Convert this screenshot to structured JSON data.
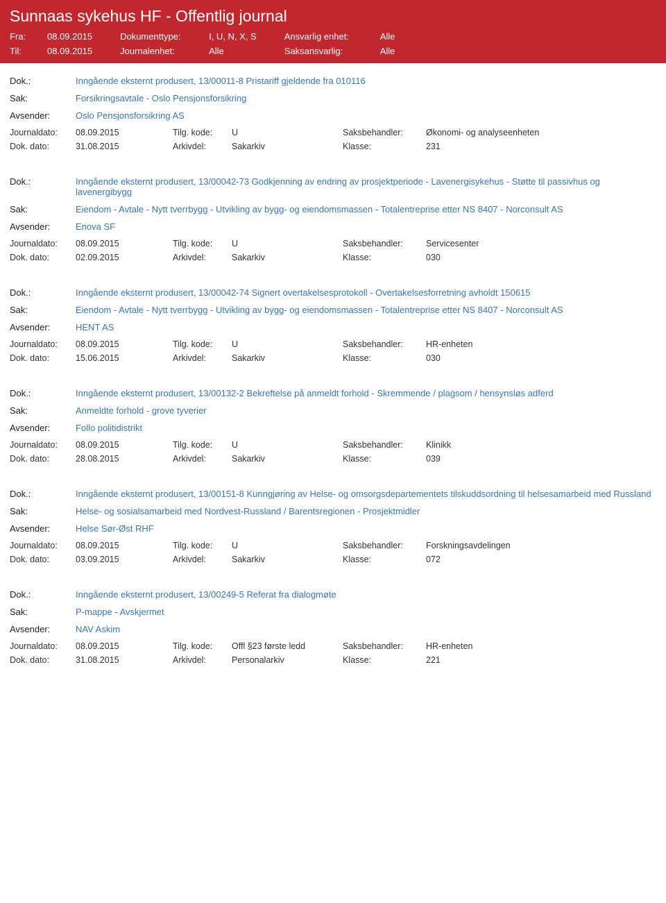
{
  "header": {
    "title": "Sunnaas sykehus HF - Offentlig journal",
    "fra_label": "Fra:",
    "fra_value": "08.09.2015",
    "til_label": "Til:",
    "til_value": "08.09.2015",
    "doktype_label": "Dokumenttype:",
    "doktype_value": "I, U, N, X, S",
    "journalenhet_label": "Journalenhet:",
    "journalenhet_value": "Alle",
    "ansvarlig_label": "Ansvarlig enhet:",
    "ansvarlig_value": "Alle",
    "saksansvarlig_label": "Saksansvarlig:",
    "saksansvarlig_value": "Alle"
  },
  "labels": {
    "dok": "Dok.:",
    "sak": "Sak:",
    "avsender": "Avsender:",
    "journaldato": "Journaldato:",
    "dokdato": "Dok. dato:",
    "tilgkode": "Tilg. kode:",
    "arkivdel": "Arkivdel:",
    "saksbehandler": "Saksbehandler:",
    "klasse": "Klasse:"
  },
  "entries": [
    {
      "dok": "Inngående eksternt produsert, 13/00011-8 Pristariff gjeldende fra 010116",
      "sak": "Forsikringsavtale - Oslo Pensjonsforsikring",
      "avsender": "Oslo Pensjonsforsikring AS",
      "journaldato": "08.09.2015",
      "tilgkode": "U",
      "saksbehandler": "Økonomi- og analyseenheten",
      "dokdato": "31.08.2015",
      "arkivdel": "Sakarkiv",
      "klasse": "231"
    },
    {
      "dok": "Inngående eksternt produsert, 13/00042-73 Godkjenning av endring av prosjektperiode - Lavenergisykehus - Støtte til passivhus og lavenergibygg",
      "sak": "Eiendom - Avtale - Nytt tverrbygg - Utvikling av bygg- og eiendomsmassen - Totalentreprise etter NS 8407 - Norconsult AS",
      "avsender": "Enova SF",
      "journaldato": "08.09.2015",
      "tilgkode": "U",
      "saksbehandler": "Servicesenter",
      "dokdato": "02.09.2015",
      "arkivdel": "Sakarkiv",
      "klasse": "030"
    },
    {
      "dok": "Inngående eksternt produsert, 13/00042-74 Signert overtakelsesprotokoll - Overtakelsesforretning avholdt 150615",
      "sak": "Eiendom - Avtale - Nytt tverrbygg - Utvikling av bygg- og eiendomsmassen - Totalentreprise etter NS 8407 - Norconsult AS",
      "avsender": "HENT AS",
      "journaldato": "08.09.2015",
      "tilgkode": "U",
      "saksbehandler": "HR-enheten",
      "dokdato": "15.06.2015",
      "arkivdel": "Sakarkiv",
      "klasse": "030"
    },
    {
      "dok": "Inngående eksternt produsert, 13/00132-2 Bekreftelse på anmeldt forhold - Skremmende / plagsom / hensynsløs adferd",
      "sak": "Anmeldte forhold - grove tyverier",
      "avsender": "Follo politidistrikt",
      "journaldato": "08.09.2015",
      "tilgkode": "U",
      "saksbehandler": "Klinikk",
      "dokdato": "28.08.2015",
      "arkivdel": "Sakarkiv",
      "klasse": "039"
    },
    {
      "dok": "Inngående eksternt produsert, 13/00151-8 Kunngjøring av Helse- og omsorgsdepartementets tilskuddsordning til helsesamarbeid med Russland",
      "sak": "Helse- og sosialsamarbeid med Nordvest-Russland / Barentsregionen - Prosjektmidler",
      "avsender": "Helse Sør-Øst RHF",
      "journaldato": "08.09.2015",
      "tilgkode": "U",
      "saksbehandler": "Forskningsavdelingen",
      "dokdato": "03.09.2015",
      "arkivdel": "Sakarkiv",
      "klasse": "072"
    },
    {
      "dok": "Inngående eksternt produsert, 13/00249-5 Referat fra dialogmøte",
      "sak": "P-mappe - Avskjermet",
      "avsender": "NAV Askim",
      "journaldato": "08.09.2015",
      "tilgkode": "Offl §23 første ledd",
      "saksbehandler": "HR-enheten",
      "dokdato": "31.08.2015",
      "arkivdel": "Personalarkiv",
      "klasse": "221"
    }
  ]
}
